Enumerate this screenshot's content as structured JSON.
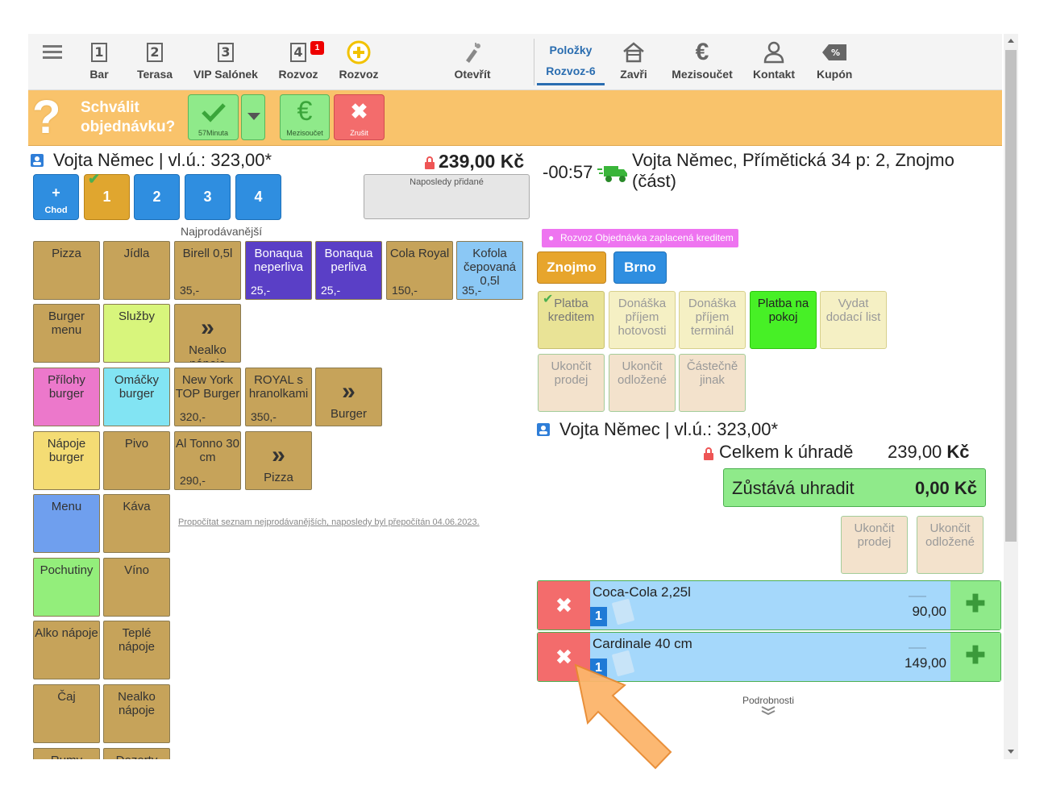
{
  "nav": {
    "items": [
      {
        "label": "Bar",
        "num": "1"
      },
      {
        "label": "Terasa",
        "num": "2"
      },
      {
        "label": "VIP Salónek",
        "num": "3"
      },
      {
        "label": "Rozvoz",
        "num": "4",
        "badge": "1"
      },
      {
        "label": "Rozvoz"
      },
      {
        "label": "Otevřít"
      }
    ],
    "active_tab": {
      "line1": "Položky",
      "line2": "Rozvoz-6"
    },
    "right_items": [
      {
        "label": "Zavři"
      },
      {
        "label": "Mezisoučet"
      },
      {
        "label": "Kontakt"
      },
      {
        "label": "Kupón"
      }
    ]
  },
  "approve_bar": {
    "question_line1": "Schválit",
    "question_line2": "objednávku?",
    "confirm_sub": "57Minuta",
    "subtotal_sub": "Mezisoučet",
    "cancel_sub": "Zrušit"
  },
  "left": {
    "customer": "Vojta Němec | vl.ú.: 323,00*",
    "total": "239,00 Kč",
    "recent_label": "Naposledy přidané",
    "course": {
      "label": "Chod",
      "plus": "+",
      "courses": [
        "1",
        "2",
        "3",
        "4"
      ]
    },
    "bestsellers_title": "Najprodávanější",
    "categories": [
      "Pizza",
      "Jídla",
      "Burger menu",
      "Služby",
      "Přílohy burger",
      "Omáčky burger",
      "Nápoje burger",
      "Pivo",
      "Menu",
      "Káva",
      "Pochutiny",
      "Víno",
      "Alko nápoje",
      "Teplé nápoje",
      "Čaj",
      "Nealko nápoje",
      "Rumy",
      "Dezerty"
    ],
    "products": [
      {
        "name": "Birell 0,5l",
        "price": "35,-"
      },
      {
        "name": "Bonaqua neperliva",
        "price": "25,-"
      },
      {
        "name": "Bonaqua perliva",
        "price": "25,-"
      },
      {
        "name": "Cola Royal",
        "price": "150,-"
      },
      {
        "name": "Kofola čepovaná 0,5l",
        "price": "35,-"
      },
      {
        "name": "New York TOP Burger",
        "price": "320,-"
      },
      {
        "name": "ROYAL s hranolkami",
        "price": "350,-"
      },
      {
        "name": "Al Tonno 30 cm",
        "price": "290,-"
      }
    ],
    "more": {
      "arrow": "»",
      "nealko": "Nealko nápoje",
      "burger": "Burger",
      "pizza": "Pizza"
    },
    "recalc_link": "Propočítat seznam nejprodávanějších, naposledy byl přepočítán 04.06.2023."
  },
  "right": {
    "timer": "-00:57",
    "address": "Vojta Němec, Přímětická 34 p: 2, Znojmo (část)",
    "tag": "Rozvoz Objednávka zaplacená kreditem",
    "branches": [
      "Znojmo",
      "Brno"
    ],
    "payment": [
      "Platba kreditem",
      "Donáška příjem hotovosti",
      "Donáška příjem terminál",
      "Platba na pokoj",
      "Vydat dodací list",
      "Ukončit prodej",
      "Ukončit odložené",
      "Částečně jinak"
    ],
    "customer": "Vojta Němec | vl.ú.: 323,00*",
    "total_label": "Celkem k úhradě",
    "total_value": "239,00",
    "currency": "Kč",
    "remaining_label": "Zůstává uhradit",
    "remaining_value": "0,00 Kč",
    "finish": [
      "Ukončit prodej",
      "Ukončit odložené"
    ],
    "order_items": [
      {
        "name": "Coca-Cola 2,25l",
        "qty": "1",
        "amount": "90,00"
      },
      {
        "name": "Cardinale 40 cm",
        "qty": "1",
        "amount": "149,00"
      }
    ],
    "details": "Podrobnosti"
  },
  "colors": {
    "orange": "#f9c36b",
    "tan": "#c6a35a",
    "blue": "#2f8ee0",
    "red": "#f36c6c",
    "green": "#8fea8a",
    "purple": "#5a3fc6"
  }
}
